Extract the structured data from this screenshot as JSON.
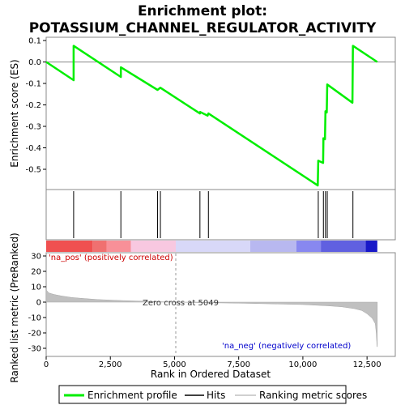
{
  "chart_data": {
    "type": "line",
    "title_line1": "Enrichment plot:",
    "title_line2": "POTASSIUM_CHANNEL_REGULATOR_ACTIVITY",
    "es_panel": {
      "ylabel": "Enrichment score (ES)",
      "ylim": [
        -0.6,
        0.1
      ],
      "yticks": [
        -0.5,
        -0.4,
        -0.3,
        -0.2,
        -0.1,
        0.0,
        0.1
      ],
      "ytick_labels": [
        "-0.5",
        "-0.4",
        "-0.3",
        "-0.2",
        "-0.1",
        "0.0",
        "0.1"
      ],
      "line_color": "#00ee00",
      "points": [
        [
          0,
          0.0
        ],
        [
          1070,
          -0.085
        ],
        [
          1070,
          0.075
        ],
        [
          2910,
          -0.07
        ],
        [
          2910,
          -0.025
        ],
        [
          4340,
          -0.13
        ],
        [
          4450,
          -0.12
        ],
        [
          5990,
          -0.24
        ],
        [
          6000,
          -0.233
        ],
        [
          6290,
          -0.25
        ],
        [
          6320,
          -0.24
        ],
        [
          10580,
          -0.575
        ],
        [
          10600,
          -0.46
        ],
        [
          10790,
          -0.47
        ],
        [
          10800,
          -0.355
        ],
        [
          10860,
          -0.36
        ],
        [
          10880,
          -0.23
        ],
        [
          10930,
          -0.235
        ],
        [
          10950,
          -0.105
        ],
        [
          11930,
          -0.19
        ],
        [
          11950,
          0.075
        ],
        [
          12900,
          0.0
        ]
      ]
    },
    "hits": [
      1070,
      2910,
      4340,
      4450,
      5990,
      6320,
      10600,
      10800,
      10880,
      10950,
      11950
    ],
    "rank_panel": {
      "ylabel": "Ranked list metric (PreRanked)",
      "ylim": [
        -30,
        30
      ],
      "yticks": [
        -30,
        -20,
        -10,
        0,
        10,
        20,
        30
      ],
      "ytick_labels": [
        "-30",
        "-20",
        "-10",
        "0",
        "10",
        "20",
        "30"
      ],
      "metric_curve": [
        [
          0,
          8.0
        ],
        [
          100,
          6.0
        ],
        [
          300,
          5.0
        ],
        [
          600,
          4.0
        ],
        [
          1000,
          3.0
        ],
        [
          1500,
          2.3
        ],
        [
          2000,
          1.7
        ],
        [
          3000,
          1.0
        ],
        [
          4000,
          0.5
        ],
        [
          5049,
          0.0
        ],
        [
          6000,
          -0.3
        ],
        [
          7500,
          -0.7
        ],
        [
          9000,
          -1.2
        ],
        [
          10000,
          -1.6
        ],
        [
          11000,
          -2.4
        ],
        [
          11500,
          -3.0
        ],
        [
          12000,
          -4.2
        ],
        [
          12300,
          -5.5
        ],
        [
          12500,
          -7.5
        ],
        [
          12700,
          -10.5
        ],
        [
          12820,
          -14.0
        ],
        [
          12860,
          -20.0
        ],
        [
          12890,
          -29.0
        ],
        [
          12900,
          -29.0
        ]
      ],
      "pos_label": "'na_pos' (positively correlated)",
      "neg_label": "'na_neg' (negatively correlated)",
      "zero_cross_label": "Zero cross at 5049",
      "zero_cross": 5049
    },
    "color_bar": {
      "segments": [
        {
          "from": 0,
          "to": 1800,
          "color": "#f05050"
        },
        {
          "from": 1800,
          "to": 2350,
          "color": "#f07070"
        },
        {
          "from": 2350,
          "to": 3300,
          "color": "#f89098"
        },
        {
          "from": 3300,
          "to": 5049,
          "color": "#f8c8e0"
        },
        {
          "from": 5049,
          "to": 7950,
          "color": "#d8d8f8"
        },
        {
          "from": 7950,
          "to": 9750,
          "color": "#b8b8f0"
        },
        {
          "from": 9750,
          "to": 10700,
          "color": "#8888f0"
        },
        {
          "from": 10700,
          "to": 12450,
          "color": "#6060e0"
        },
        {
          "from": 12450,
          "to": 12900,
          "color": "#1818c8"
        }
      ]
    },
    "xlabel": "Rank in Ordered Dataset",
    "xlim": [
      0,
      13600
    ],
    "xticks": [
      0,
      2500,
      5000,
      7500,
      10000,
      12500
    ],
    "xtick_labels": [
      "0",
      "2,500",
      "5,000",
      "7,500",
      "10,000",
      "12,500"
    ],
    "legend": {
      "items": [
        {
          "label": "Enrichment profile",
          "color": "#00ee00"
        },
        {
          "label": "Hits",
          "color": "#000000"
        },
        {
          "label": "Ranking metric scores",
          "color": "#c0c0c0"
        }
      ]
    }
  }
}
